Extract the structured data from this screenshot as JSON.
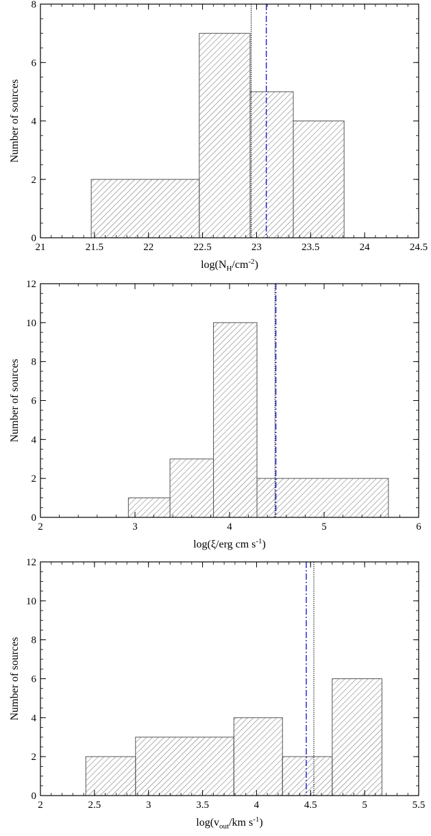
{
  "chart_data": [
    {
      "type": "bar",
      "subtype": "histogram",
      "xlabel": {
        "base": "log(N",
        "sub": "H",
        "mid": "/cm",
        "sup": "-2",
        "end": ")"
      },
      "ylabel": "Number of sources",
      "xlim": [
        21,
        24.5
      ],
      "ylim": [
        0,
        8
      ],
      "xticks": [
        "21",
        "21.5",
        "22",
        "22.5",
        "23",
        "23.5",
        "24",
        "24.5"
      ],
      "yticks": [
        "0",
        "2",
        "4",
        "6",
        "8"
      ],
      "bins": [
        {
          "x0": 21.47,
          "x1": 22.47,
          "count": 2
        },
        {
          "x0": 22.47,
          "x1": 22.94,
          "count": 7
        },
        {
          "x0": 22.94,
          "x1": 23.34,
          "count": 5
        },
        {
          "x0": 23.34,
          "x1": 23.81,
          "count": 4
        }
      ],
      "vlines": [
        {
          "x": 22.95,
          "style": "dotted",
          "color": "#000000"
        },
        {
          "x": 23.09,
          "style": "dashdot",
          "color": "#1a1acc"
        }
      ],
      "grid": false,
      "hatch": "diagonal"
    },
    {
      "type": "bar",
      "subtype": "histogram",
      "xlabel": {
        "base": "log(ξ/erg cm s",
        "sub": "",
        "mid": "",
        "sup": "-1",
        "end": ")"
      },
      "ylabel": "Number of sources",
      "xlim": [
        2,
        6
      ],
      "ylim": [
        0,
        12
      ],
      "xticks": [
        "2",
        "3",
        "4",
        "5",
        "6"
      ],
      "yticks": [
        "0",
        "2",
        "4",
        "6",
        "8",
        "10",
        "12"
      ],
      "bins": [
        {
          "x0": 2.93,
          "x1": 3.37,
          "count": 1
        },
        {
          "x0": 3.37,
          "x1": 3.83,
          "count": 3
        },
        {
          "x0": 3.83,
          "x1": 4.29,
          "count": 10
        },
        {
          "x0": 4.29,
          "x1": 5.68,
          "count": 2
        }
      ],
      "vlines": [
        {
          "x": 4.48,
          "style": "dotted",
          "color": "#000000"
        },
        {
          "x": 4.49,
          "style": "dashdot",
          "color": "#1a1acc"
        }
      ],
      "grid": false,
      "hatch": "diagonal"
    },
    {
      "type": "bar",
      "subtype": "histogram",
      "xlabel": {
        "base": "log(v",
        "sub": "out",
        "mid": "/km s",
        "sup": "-1",
        "end": ")"
      },
      "ylabel": "Number of sources",
      "xlim": [
        2,
        5.5
      ],
      "ylim": [
        0,
        12
      ],
      "xticks": [
        "2",
        "2.5",
        "3",
        "3.5",
        "4",
        "4.5",
        "5",
        "5.5"
      ],
      "yticks": [
        "0",
        "2",
        "4",
        "6",
        "8",
        "10",
        "12"
      ],
      "bins": [
        {
          "x0": 2.42,
          "x1": 2.88,
          "count": 2
        },
        {
          "x0": 2.88,
          "x1": 3.79,
          "count": 3
        },
        {
          "x0": 3.79,
          "x1": 4.24,
          "count": 4
        },
        {
          "x0": 4.24,
          "x1": 4.7,
          "count": 2
        },
        {
          "x0": 4.7,
          "x1": 5.16,
          "count": 6
        }
      ],
      "vlines": [
        {
          "x": 4.53,
          "style": "dotted",
          "color": "#000000"
        },
        {
          "x": 4.46,
          "style": "dashdot",
          "color": "#1a1acc"
        }
      ],
      "grid": false,
      "hatch": "diagonal"
    }
  ]
}
